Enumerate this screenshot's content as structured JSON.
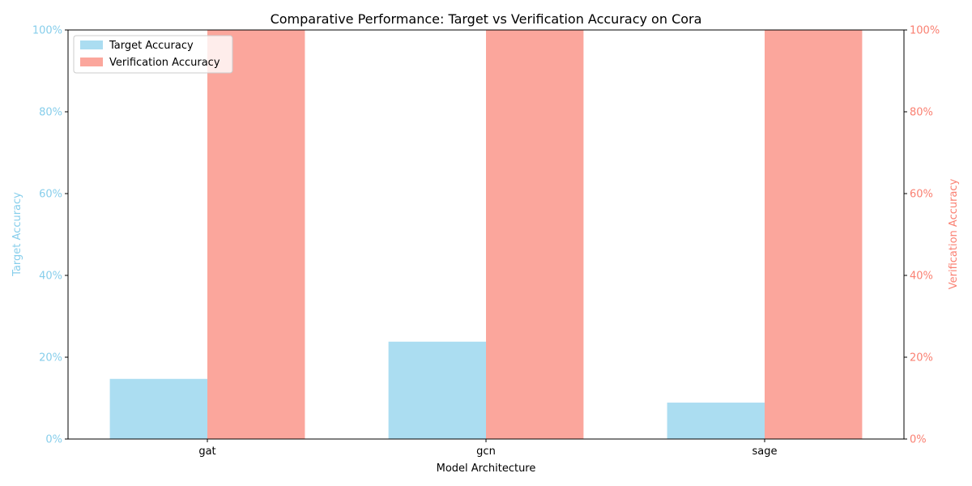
{
  "chart_data": {
    "type": "bar",
    "title": "Comparative Performance: Target vs Verification Accuracy on Cora",
    "xlabel": "Model Architecture",
    "ylabel_left": "Target Accuracy",
    "ylabel_right": "Verification Accuracy",
    "categories": [
      "gat",
      "gcn",
      "sage"
    ],
    "series": [
      {
        "name": "Target Accuracy",
        "axis": "left",
        "color": "#87ceeb",
        "values": [
          0.147,
          0.238,
          0.089
        ]
      },
      {
        "name": "Verification Accuracy",
        "axis": "right",
        "color": "#fa8072",
        "values": [
          1.0,
          1.0,
          1.0
        ]
      }
    ],
    "ylim": [
      0,
      1
    ],
    "yticks": [
      0,
      0.2,
      0.4,
      0.6,
      0.8,
      1.0
    ],
    "ytick_labels": [
      "0%",
      "20%",
      "40%",
      "60%",
      "80%",
      "100%"
    ],
    "left_axis_color": "#87ceeb",
    "right_axis_color": "#fa8072",
    "legend_position": "top-left",
    "grid": false
  }
}
